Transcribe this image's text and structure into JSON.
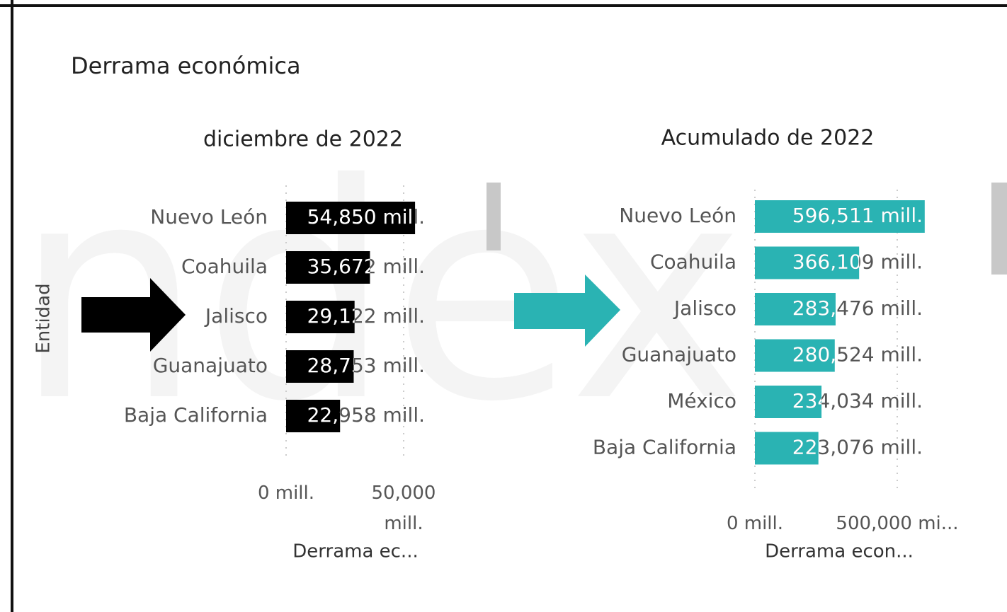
{
  "header": {
    "title": "Derrama económica"
  },
  "chart_data": [
    {
      "type": "barh",
      "title": "diciembre de 2022",
      "y_label": "Entidad",
      "x_label": "Derrama ec...",
      "categories": [
        "Nuevo León",
        "Coahuila",
        "Jalisco",
        "Guanajuato",
        "Baja California"
      ],
      "values": [
        54850,
        35672,
        29122,
        28753,
        22958
      ],
      "value_labels": [
        "54,850 mill.",
        "35,672 mill.",
        "29,122 mill.",
        "28,753 mill.",
        "22,958 mill."
      ],
      "color": "#000000",
      "xlim": [
        0,
        60000
      ],
      "xticks": [
        {
          "value": 0,
          "label": "0 mill."
        },
        {
          "value": 50000,
          "label": "50,000 mill."
        }
      ],
      "grid": true
    },
    {
      "type": "barh",
      "title": "Acumulado de 2022",
      "x_label": "Derrama econ...",
      "categories": [
        "Nuevo León",
        "Coahuila",
        "Jalisco",
        "Guanajuato",
        "México",
        "Baja California"
      ],
      "values": [
        596511,
        366109,
        283476,
        280524,
        234034,
        223076
      ],
      "value_labels": [
        "596,511 mill.",
        "366,109 mill.",
        "283,476 mill.",
        "280,524 mill.",
        "234,034 mill.",
        "223,076 mill."
      ],
      "color": "#2ab3b3",
      "xlim": [
        0,
        600000
      ],
      "xticks": [
        {
          "value": 0,
          "label": "0 mill."
        },
        {
          "value": 500000,
          "label": "500,000 mi..."
        }
      ],
      "grid": true
    }
  ]
}
